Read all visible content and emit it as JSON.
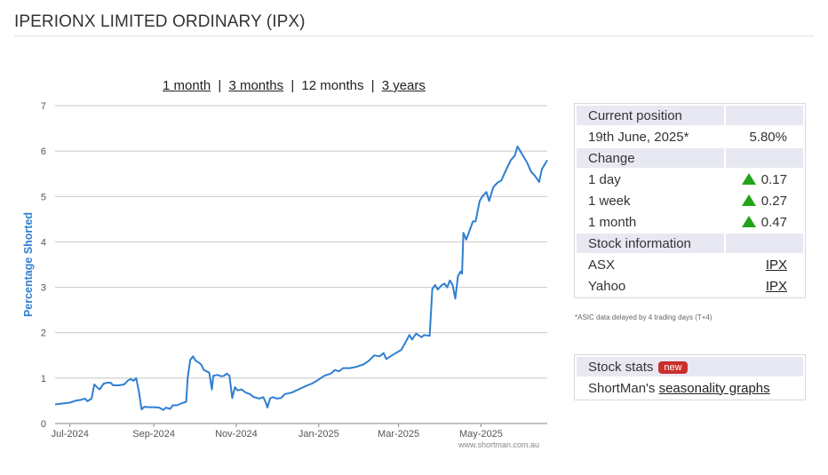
{
  "page": {
    "title": "IPERIONX LIMITED ORDINARY (IPX)"
  },
  "range": {
    "one_month": "1 month",
    "three_months": "3 months",
    "twelve_months": "12 months",
    "three_years": "3 years",
    "separator": "|"
  },
  "chart_data": {
    "type": "line",
    "ylabel": "Percentage Shorted",
    "ylim": [
      0,
      7
    ],
    "yticks": [
      "0",
      "1",
      "2",
      "3",
      "4",
      "5",
      "6",
      "7"
    ],
    "xlim": [
      "2024-06-20",
      "2025-06-19"
    ],
    "xticks": [
      {
        "label": "Jul-2024",
        "date": "2024-07-01"
      },
      {
        "label": "Sep-2024",
        "date": "2024-09-01"
      },
      {
        "label": "Nov-2024",
        "date": "2024-11-01"
      },
      {
        "label": "Jan-2025",
        "date": "2025-01-01"
      },
      {
        "label": "Mar-2025",
        "date": "2025-03-01"
      },
      {
        "label": "May-2025",
        "date": "2025-05-01"
      }
    ],
    "grid": true,
    "line_color": "#2f7fd1",
    "watermark": "www.shortman.com.au",
    "series": [
      {
        "points": [
          [
            "2024-06-20",
            0.42
          ],
          [
            "2024-06-25",
            0.44
          ],
          [
            "2024-07-01",
            0.46
          ],
          [
            "2024-07-05",
            0.5
          ],
          [
            "2024-07-09",
            0.52
          ],
          [
            "2024-07-12",
            0.55
          ],
          [
            "2024-07-14",
            0.49
          ],
          [
            "2024-07-17",
            0.55
          ],
          [
            "2024-07-19",
            0.86
          ],
          [
            "2024-07-21",
            0.8
          ],
          [
            "2024-07-23",
            0.75
          ],
          [
            "2024-07-26",
            0.88
          ],
          [
            "2024-07-29",
            0.9
          ],
          [
            "2024-07-31",
            0.9
          ],
          [
            "2024-08-02",
            0.84
          ],
          [
            "2024-08-06",
            0.84
          ],
          [
            "2024-08-10",
            0.86
          ],
          [
            "2024-08-13",
            0.95
          ],
          [
            "2024-08-15",
            0.98
          ],
          [
            "2024-08-17",
            0.94
          ],
          [
            "2024-08-19",
            1.0
          ],
          [
            "2024-08-21",
            0.7
          ],
          [
            "2024-08-23",
            0.31
          ],
          [
            "2024-08-25",
            0.37
          ],
          [
            "2024-08-28",
            0.36
          ],
          [
            "2024-09-01",
            0.36
          ],
          [
            "2024-09-05",
            0.35
          ],
          [
            "2024-09-08",
            0.3
          ],
          [
            "2024-09-10",
            0.35
          ],
          [
            "2024-09-13",
            0.32
          ],
          [
            "2024-09-15",
            0.4
          ],
          [
            "2024-09-18",
            0.4
          ],
          [
            "2024-09-22",
            0.45
          ],
          [
            "2024-09-25",
            0.48
          ],
          [
            "2024-09-26",
            1.0
          ],
          [
            "2024-09-28",
            1.4
          ],
          [
            "2024-09-30",
            1.48
          ],
          [
            "2024-10-02",
            1.38
          ],
          [
            "2024-10-04",
            1.35
          ],
          [
            "2024-10-06",
            1.3
          ],
          [
            "2024-10-08",
            1.18
          ],
          [
            "2024-10-12",
            1.12
          ],
          [
            "2024-10-14",
            0.75
          ],
          [
            "2024-10-15",
            1.05
          ],
          [
            "2024-10-18",
            1.07
          ],
          [
            "2024-10-21",
            1.04
          ],
          [
            "2024-10-23",
            1.05
          ],
          [
            "2024-10-25",
            1.1
          ],
          [
            "2024-10-27",
            1.05
          ],
          [
            "2024-10-29",
            0.56
          ],
          [
            "2024-10-31",
            0.8
          ],
          [
            "2024-11-02",
            0.73
          ],
          [
            "2024-11-05",
            0.75
          ],
          [
            "2024-11-08",
            0.68
          ],
          [
            "2024-11-11",
            0.65
          ],
          [
            "2024-11-14",
            0.58
          ],
          [
            "2024-11-18",
            0.55
          ],
          [
            "2024-11-21",
            0.58
          ],
          [
            "2024-11-23",
            0.45
          ],
          [
            "2024-11-24",
            0.35
          ],
          [
            "2024-11-26",
            0.55
          ],
          [
            "2024-11-28",
            0.58
          ],
          [
            "2024-12-01",
            0.55
          ],
          [
            "2024-12-04",
            0.56
          ],
          [
            "2024-12-07",
            0.65
          ],
          [
            "2024-12-12",
            0.68
          ],
          [
            "2024-12-17",
            0.75
          ],
          [
            "2024-12-22",
            0.82
          ],
          [
            "2024-12-27",
            0.88
          ],
          [
            "2024-12-31",
            0.95
          ],
          [
            "2025-01-05",
            1.05
          ],
          [
            "2025-01-10",
            1.1
          ],
          [
            "2025-01-13",
            1.18
          ],
          [
            "2025-01-16",
            1.15
          ],
          [
            "2025-01-19",
            1.22
          ],
          [
            "2025-01-24",
            1.22
          ],
          [
            "2025-01-29",
            1.25
          ],
          [
            "2025-02-03",
            1.3
          ],
          [
            "2025-02-07",
            1.38
          ],
          [
            "2025-02-11",
            1.5
          ],
          [
            "2025-02-15",
            1.48
          ],
          [
            "2025-02-18",
            1.55
          ],
          [
            "2025-02-20",
            1.42
          ],
          [
            "2025-02-23",
            1.48
          ],
          [
            "2025-02-27",
            1.55
          ],
          [
            "2025-03-03",
            1.62
          ],
          [
            "2025-03-06",
            1.78
          ],
          [
            "2025-03-09",
            1.95
          ],
          [
            "2025-03-11",
            1.85
          ],
          [
            "2025-03-14",
            1.98
          ],
          [
            "2025-03-18",
            1.9
          ],
          [
            "2025-03-20",
            1.95
          ],
          [
            "2025-03-24",
            1.93
          ],
          [
            "2025-03-26",
            2.96
          ],
          [
            "2025-03-28",
            3.05
          ],
          [
            "2025-03-30",
            2.95
          ],
          [
            "2025-04-02",
            3.05
          ],
          [
            "2025-04-04",
            3.08
          ],
          [
            "2025-04-06",
            3.0
          ],
          [
            "2025-04-08",
            3.15
          ],
          [
            "2025-04-10",
            3.05
          ],
          [
            "2025-04-12",
            2.75
          ],
          [
            "2025-04-14",
            3.25
          ],
          [
            "2025-04-16",
            3.35
          ],
          [
            "2025-04-17",
            3.3
          ],
          [
            "2025-04-18",
            4.2
          ],
          [
            "2025-04-20",
            4.05
          ],
          [
            "2025-04-22",
            4.2
          ],
          [
            "2025-04-25",
            4.45
          ],
          [
            "2025-04-27",
            4.45
          ],
          [
            "2025-04-30",
            4.9
          ],
          [
            "2025-05-02",
            5.0
          ],
          [
            "2025-05-05",
            5.1
          ],
          [
            "2025-05-07",
            4.9
          ],
          [
            "2025-05-10",
            5.2
          ],
          [
            "2025-05-13",
            5.3
          ],
          [
            "2025-05-16",
            5.35
          ],
          [
            "2025-05-19",
            5.55
          ],
          [
            "2025-05-23",
            5.8
          ],
          [
            "2025-05-26",
            5.9
          ],
          [
            "2025-05-28",
            6.1
          ],
          [
            "2025-05-30",
            6.0
          ],
          [
            "2025-06-02",
            5.85
          ],
          [
            "2025-06-04",
            5.75
          ],
          [
            "2025-06-07",
            5.55
          ],
          [
            "2025-06-10",
            5.45
          ],
          [
            "2025-06-13",
            5.32
          ],
          [
            "2025-06-15",
            5.6
          ],
          [
            "2025-06-19",
            5.8
          ]
        ]
      }
    ]
  },
  "position_panel": {
    "current_position_header": "Current position",
    "date": "19th June, 2025*",
    "current_value": "5.80%",
    "change_header": "Change",
    "changes": [
      {
        "label": "1 day",
        "value": "0.17",
        "direction": "up"
      },
      {
        "label": "1 week",
        "value": "0.27",
        "direction": "up"
      },
      {
        "label": "1 month",
        "value": "0.47",
        "direction": "up"
      }
    ],
    "stock_info_header": "Stock information",
    "asx_label": "ASX",
    "asx_link": "IPX",
    "yahoo_label": "Yahoo",
    "yahoo_link": "IPX",
    "footnote": "*ASIC data delayed by 4 trading days (T+4)",
    "up_color": "#22a31a"
  },
  "stats_panel": {
    "header": "Stock stats",
    "badge": "new",
    "text_prefix": "ShortMan's",
    "link": "seasonality graphs"
  }
}
